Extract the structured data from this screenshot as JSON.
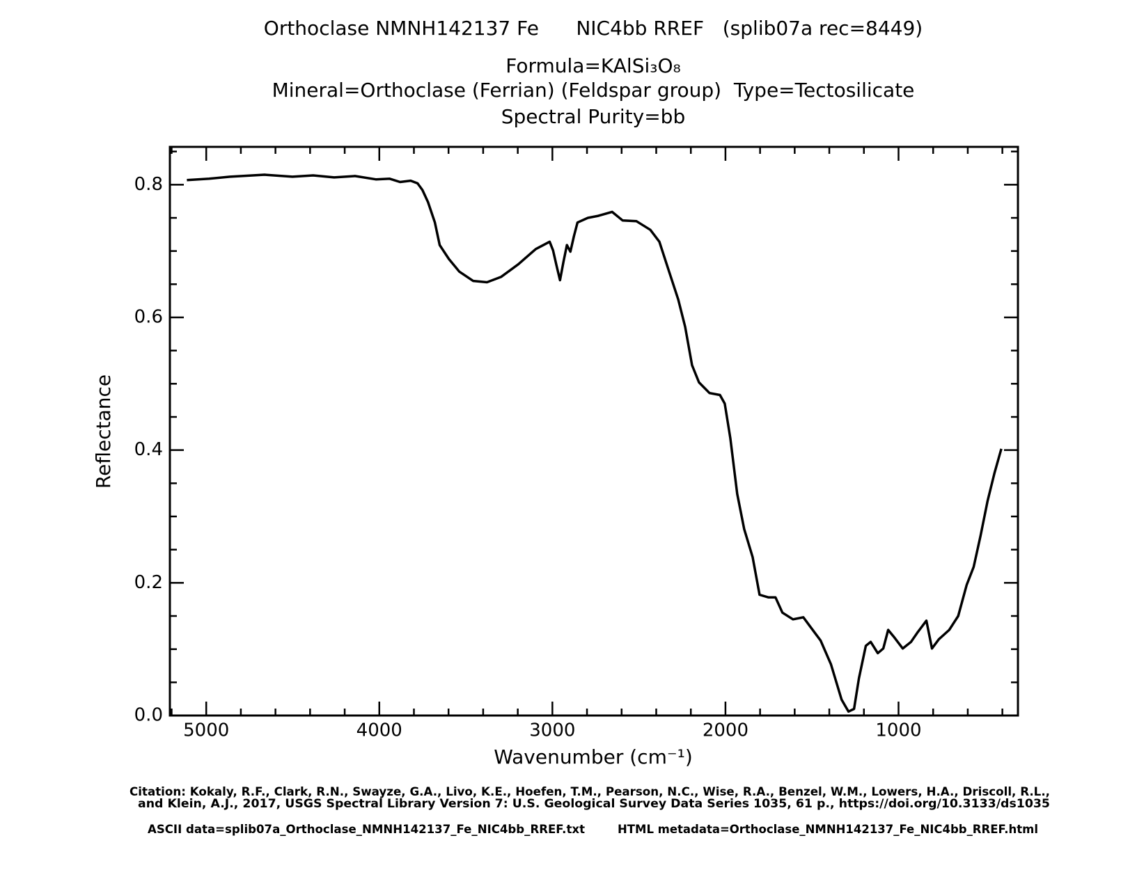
{
  "chart_data": {
    "type": "line",
    "title": "Orthoclase NMNH142137 Fe      NIC4bb RREF   (splib07a rec=8449)",
    "subtitle": [
      "Formula=KAlSi₃O₈",
      "Mineral=Orthoclase (Ferrian) (Feldspar group)  Type=Tectosilicate",
      "Spectral Purity=bb"
    ],
    "xlabel": "Wavenumber (cm⁻¹)",
    "ylabel": "Reflectance",
    "notes": [
      "Citation: Kokaly, R.F., Clark, R.N., Swayze, G.A., Livo, K.E., Hoefen, T.M., Pearson, N.C., Wise, R.A., Benzel, W.M., Lowers, H.A., Driscoll, R.L.,",
      "and Klein, A.J., 2017, USGS Spectral Library Version 7: U.S. Geological Survey Data Series 1035, 61 p., https://doi.org/10.3133/ds1035",
      "ASCII data=splib07a_Orthoclase_NMNH142137_Fe_NIC4bb_RREF.txt",
      "HTML metadata=Orthoclase_NMNH142137_Fe_NIC4bb_RREF.html"
    ],
    "xlim": [
      5210,
      310
    ],
    "ylim": [
      0,
      0.857
    ],
    "xticks": [
      5000,
      4000,
      3000,
      2000,
      1000
    ],
    "yticks": [
      {
        "value": 0,
        "label": "0.0"
      },
      0.2,
      0.4,
      0.6,
      0.8
    ],
    "xminorticks": [
      5200,
      4800,
      4600,
      4400,
      4200,
      3800,
      3600,
      3400,
      3200,
      2800,
      2600,
      2400,
      2200,
      1800,
      1600,
      1400,
      1200,
      800,
      600,
      400
    ],
    "yminorticks": [
      0.05,
      0.1,
      0.15,
      0.25,
      0.3,
      0.35,
      0.45,
      0.5,
      0.55,
      0.65,
      0.7,
      0.75,
      0.85
    ],
    "series": [
      {
        "color": "#000000",
        "x": [
          5112,
          4984,
          4863,
          4663,
          4502,
          4382,
          4261,
          4141,
          4020,
          3940,
          3880,
          3819,
          3779,
          3751,
          3719,
          3679,
          3651,
          3598,
          3538,
          3458,
          3378,
          3297,
          3197,
          3096,
          3016,
          2996,
          2976,
          2956,
          2936,
          2916,
          2896,
          2876,
          2855,
          2795,
          2735,
          2655,
          2594,
          2514,
          2434,
          2382,
          2333,
          2273,
          2233,
          2193,
          2153,
          2092,
          2032,
          2004,
          1972,
          1932,
          1892,
          1843,
          1803,
          1751,
          1711,
          1671,
          1610,
          1550,
          1510,
          1450,
          1390,
          1329,
          1289,
          1257,
          1229,
          1189,
          1161,
          1120,
          1088,
          1060,
          1028,
          976,
          928,
          888,
          839,
          807,
          767,
          707,
          655,
          606,
          566,
          526,
          486,
          446,
          406
        ],
        "values": [
          0.807,
          0.809,
          0.812,
          0.815,
          0.812,
          0.814,
          0.811,
          0.813,
          0.808,
          0.809,
          0.804,
          0.806,
          0.802,
          0.792,
          0.774,
          0.743,
          0.709,
          0.688,
          0.669,
          0.655,
          0.653,
          0.661,
          0.68,
          0.703,
          0.714,
          0.701,
          0.678,
          0.656,
          0.684,
          0.709,
          0.699,
          0.722,
          0.743,
          0.75,
          0.753,
          0.759,
          0.746,
          0.745,
          0.732,
          0.714,
          0.675,
          0.627,
          0.586,
          0.528,
          0.502,
          0.486,
          0.483,
          0.47,
          0.418,
          0.334,
          0.281,
          0.239,
          0.182,
          0.178,
          0.178,
          0.155,
          0.145,
          0.148,
          0.134,
          0.113,
          0.077,
          0.024,
          0.006,
          0.01,
          0.056,
          0.105,
          0.111,
          0.094,
          0.101,
          0.129,
          0.119,
          0.101,
          0.111,
          0.126,
          0.143,
          0.101,
          0.115,
          0.129,
          0.15,
          0.197,
          0.224,
          0.271,
          0.323,
          0.365,
          0.402
        ]
      }
    ]
  }
}
